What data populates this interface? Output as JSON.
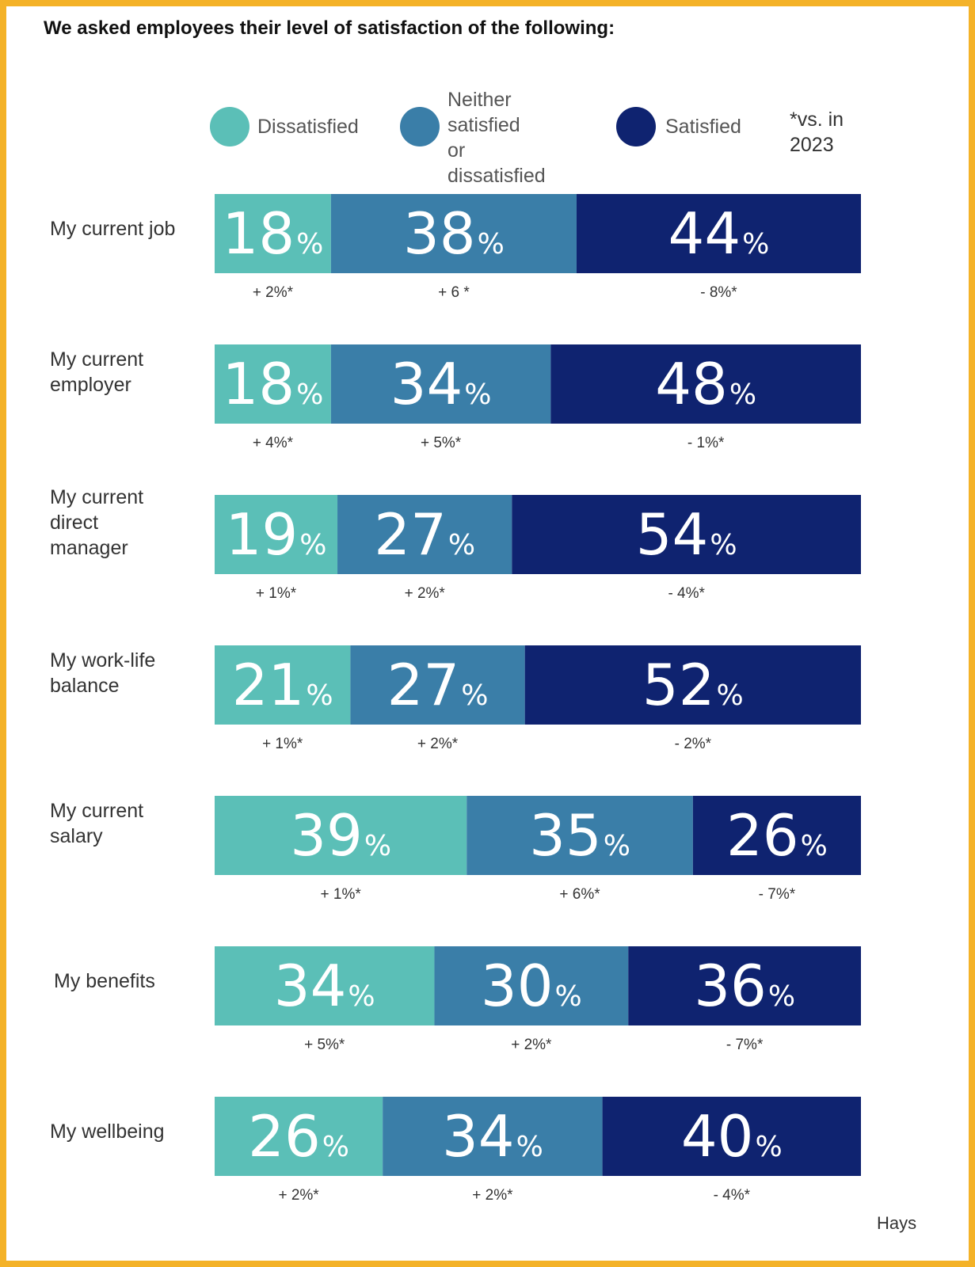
{
  "title": "We asked employees their level of satisfaction of the following:",
  "legend": [
    {
      "label": "Dissatisfied",
      "color": "#5bbfb7"
    },
    {
      "label": "Neither\nsatisfied\nor dissatisfied",
      "color": "#3a7ea8"
    },
    {
      "label": "Satisfied",
      "color": "#0f2370"
    }
  ],
  "footnote": "*vs. in\n2023",
  "source": "Hays",
  "chart_data": {
    "type": "bar",
    "orientation": "horizontal",
    "stacked": true,
    "categories": [
      "My current job",
      "My current\nemployer",
      "My current\ndirect\nmanager",
      "My work-life\nbalance",
      "My current\nsalary",
      "My benefits",
      "My wellbeing"
    ],
    "series": [
      {
        "name": "Dissatisfied",
        "color": "#5bbfb7",
        "values": [
          18,
          18,
          19,
          21,
          39,
          34,
          26
        ],
        "changes": [
          "+ 2%*",
          "+ 4%*",
          "+ 1%*",
          "+ 1%*",
          "+ 1%*",
          "+ 5%*",
          "+ 2%*"
        ]
      },
      {
        "name": "Neither satisfied or dissatisfied",
        "color": "#3a7ea8",
        "values": [
          38,
          34,
          27,
          27,
          35,
          30,
          34
        ],
        "changes": [
          "+ 6 *",
          "+ 5%*",
          "+ 2%*",
          "+ 2%*",
          "+ 6%*",
          "+ 2%*",
          "+ 2%*"
        ]
      },
      {
        "name": "Satisfied",
        "color": "#0f2370",
        "values": [
          44,
          48,
          54,
          52,
          26,
          36,
          40
        ],
        "changes": [
          "- 8%*",
          "- 1%*",
          "- 4%*",
          "- 2%*",
          "- 7%*",
          "- 7%*",
          "- 4%*"
        ]
      }
    ],
    "value_suffix": "%",
    "xlim": [
      0,
      100
    ]
  }
}
